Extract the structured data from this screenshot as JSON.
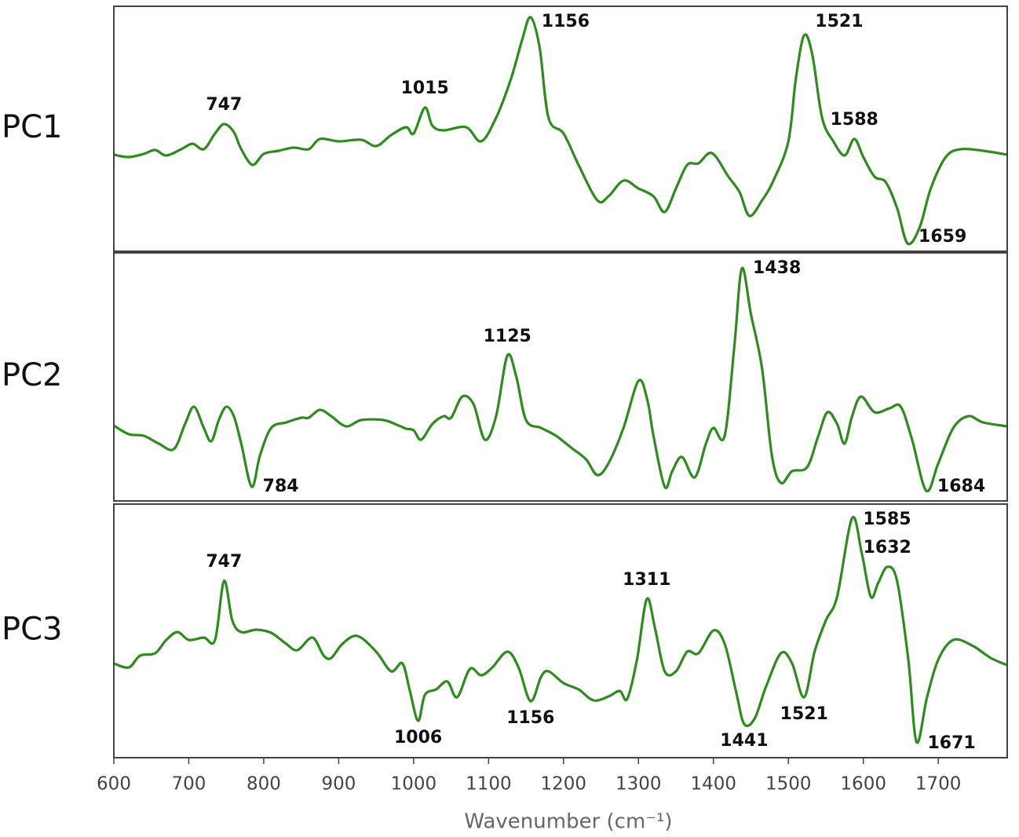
{
  "chart_data": [
    {
      "type": "line",
      "title": "PC1",
      "xlim": [
        600,
        1792
      ],
      "ylim": [
        0,
        312
      ],
      "x": [
        600,
        620,
        640,
        655,
        670,
        690,
        705,
        720,
        735,
        747,
        760,
        770,
        785,
        800,
        820,
        840,
        860,
        875,
        900,
        930,
        950,
        970,
        990,
        1000,
        1015,
        1025,
        1040,
        1070,
        1090,
        1110,
        1130,
        1145,
        1156,
        1168,
        1180,
        1200,
        1220,
        1245,
        1260,
        1280,
        1300,
        1320,
        1335,
        1350,
        1365,
        1380,
        1398,
        1420,
        1435,
        1448,
        1465,
        1480,
        1500,
        1510,
        1521,
        1532,
        1545,
        1560,
        1575,
        1588,
        1600,
        1615,
        1630,
        1645,
        1659,
        1675,
        1690,
        1710,
        1730,
        1760,
        1792
      ],
      "series": [
        {
          "color": "#2e8b1e",
          "values": [
            123,
            120,
            124,
            129,
            122,
            130,
            137,
            130,
            150,
            162,
            152,
            130,
            110,
            124,
            128,
            132,
            130,
            143,
            140,
            142,
            134,
            148,
            158,
            150,
            183,
            160,
            154,
            158,
            140,
            170,
            220,
            270,
            298,
            260,
            170,
            150,
            110,
            65,
            70,
            90,
            80,
            70,
            50,
            80,
            110,
            112,
            125,
            95,
            75,
            45,
            65,
            90,
            140,
            220,
            275,
            250,
            170,
            140,
            122,
            143,
            120,
            95,
            88,
            55,
            10,
            30,
            80,
            120,
            130,
            128,
            123
          ]
        }
      ],
      "peaks": [
        747,
        1015,
        1156,
        1521,
        1588
      ],
      "troughs": [
        1659
      ]
    },
    {
      "type": "line",
      "title": "PC2",
      "xlim": [
        600,
        1792
      ],
      "ylim": [
        0,
        316
      ],
      "x": [
        600,
        620,
        640,
        660,
        680,
        695,
        707,
        720,
        730,
        740,
        750,
        760,
        770,
        784,
        795,
        810,
        830,
        850,
        860,
        875,
        890,
        910,
        930,
        960,
        980,
        990,
        1000,
        1010,
        1025,
        1040,
        1050,
        1065,
        1080,
        1095,
        1110,
        1125,
        1137,
        1150,
        1170,
        1190,
        1210,
        1230,
        1245,
        1260,
        1280,
        1300,
        1312,
        1320,
        1335,
        1345,
        1358,
        1375,
        1390,
        1400,
        1415,
        1428,
        1438,
        1450,
        1465,
        1478,
        1490,
        1505,
        1525,
        1540,
        1552,
        1565,
        1575,
        1585,
        1597,
        1615,
        1635,
        1650,
        1665,
        1684,
        1700,
        1720,
        1740,
        1760,
        1792
      ],
      "series": [
        {
          "color": "#2e8b1e",
          "values": [
            96,
            85,
            83,
            73,
            66,
            98,
            120,
            93,
            76,
            103,
            120,
            108,
            73,
            18,
            58,
            93,
            100,
            106,
            106,
            116,
            108,
            95,
            103,
            103,
            96,
            92,
            90,
            78,
            98,
            108,
            106,
            133,
            123,
            78,
            108,
            185,
            158,
            103,
            93,
            83,
            68,
            53,
            33,
            48,
            93,
            153,
            128,
            83,
            18,
            38,
            56,
            30,
            73,
            93,
            83,
            198,
            296,
            238,
            168,
            58,
            23,
            38,
            43,
            83,
            113,
            98,
            73,
            108,
            133,
            113,
            118,
            120,
            78,
            13,
            48,
            93,
            108,
            100,
            95
          ]
        }
      ],
      "peaks": [
        1125,
        1438
      ],
      "troughs": [
        784,
        1684
      ]
    },
    {
      "type": "line",
      "title": "PC3",
      "xlim": [
        600,
        1792
      ],
      "ylim": [
        0,
        323
      ],
      "xticks": [
        600,
        700,
        800,
        900,
        1000,
        1100,
        1200,
        1300,
        1400,
        1500,
        1600,
        1700
      ],
      "xlabel": "Wavenumber (cm⁻¹)",
      "x": [
        600,
        620,
        635,
        655,
        670,
        685,
        700,
        720,
        735,
        747,
        758,
        770,
        790,
        810,
        830,
        845,
        865,
        880,
        890,
        905,
        925,
        950,
        970,
        985,
        995,
        1006,
        1015,
        1030,
        1045,
        1058,
        1075,
        1090,
        1105,
        1125,
        1140,
        1156,
        1170,
        1180,
        1200,
        1220,
        1240,
        1260,
        1275,
        1285,
        1298,
        1311,
        1322,
        1335,
        1350,
        1365,
        1380,
        1400,
        1415,
        1430,
        1441,
        1455,
        1470,
        1490,
        1505,
        1521,
        1535,
        1550,
        1565,
        1585,
        1598,
        1610,
        1620,
        1632,
        1645,
        1660,
        1671,
        1685,
        1700,
        1720,
        1745,
        1770,
        1792
      ],
      "series": [
        {
          "color": "#2e8b1e",
          "values": [
            120,
            115,
            130,
            133,
            150,
            160,
            150,
            153,
            150,
            225,
            175,
            160,
            163,
            159,
            145,
            137,
            153,
            130,
            127,
            145,
            155,
            135,
            110,
            120,
            85,
            47,
            80,
            87,
            97,
            77,
            113,
            105,
            115,
            135,
            115,
            72,
            103,
            110,
            95,
            87,
            73,
            78,
            85,
            75,
            125,
            202,
            165,
            110,
            110,
            135,
            133,
            162,
            145,
            85,
            43,
            50,
            90,
            133,
            120,
            77,
            135,
            175,
            205,
            305,
            260,
            205,
            223,
            243,
            225,
            125,
            20,
            77,
            125,
            150,
            143,
            127,
            118
          ]
        }
      ],
      "peaks": [
        747,
        1311,
        1585,
        1632
      ],
      "troughs": [
        1006,
        1156,
        1441,
        1521,
        1671
      ]
    }
  ]
}
